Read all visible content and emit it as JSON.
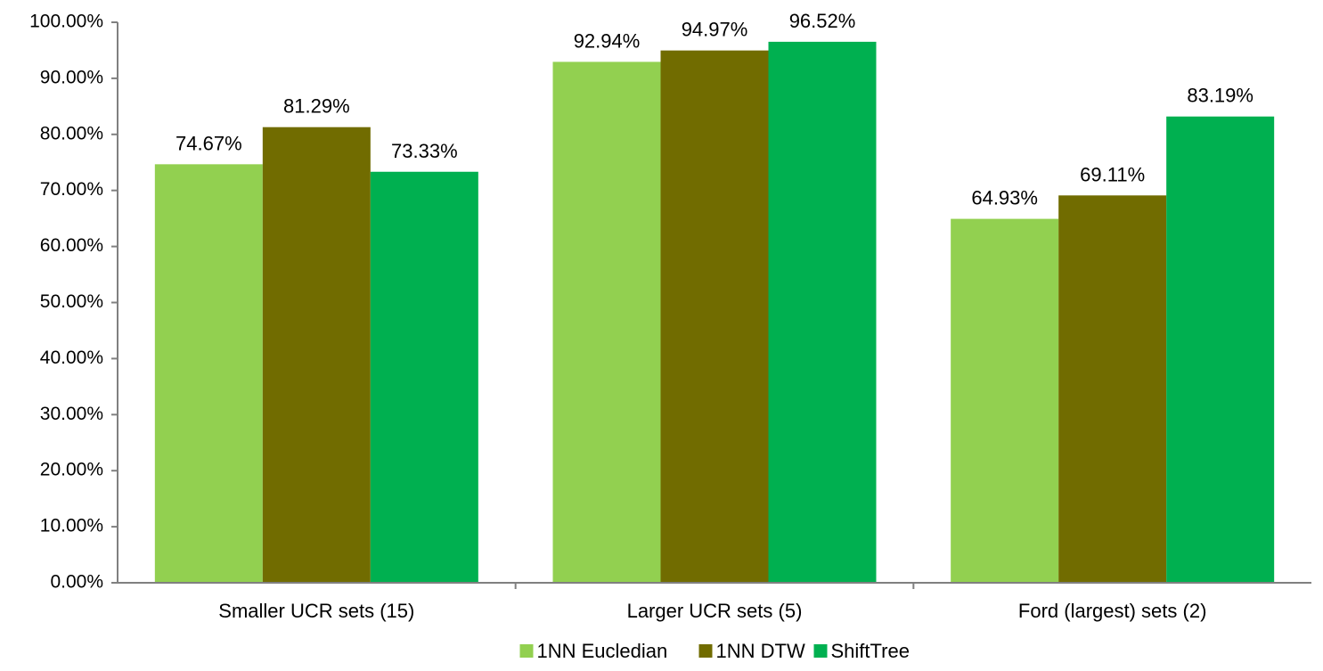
{
  "chart_data": {
    "type": "bar",
    "title": "",
    "xlabel": "",
    "ylabel": "",
    "categories": [
      "Smaller UCR sets (15)",
      "Larger UCR sets (5)",
      "Ford (largest) sets (2)"
    ],
    "series": [
      {
        "name": "1NN Eucledian",
        "color": "#92d050",
        "values": [
          74.67,
          92.94,
          64.93
        ],
        "labels": [
          "74.67%",
          "92.94%",
          "64.93%"
        ]
      },
      {
        "name": "1NN DTW",
        "color": "#716c00",
        "values": [
          81.29,
          94.97,
          69.11
        ],
        "labels": [
          "81.29%",
          "94.97%",
          "69.11%"
        ]
      },
      {
        "name": "ShiftTree",
        "color": "#00b050",
        "values": [
          73.33,
          96.52,
          83.19
        ],
        "labels": [
          "73.33%",
          "96.52%",
          "83.19%"
        ]
      }
    ],
    "ylim": [
      0,
      100
    ],
    "yticks": [
      0,
      10,
      20,
      30,
      40,
      50,
      60,
      70,
      80,
      90,
      100
    ],
    "ytick_labels": [
      "0.00%",
      "10.00%",
      "20.00%",
      "30.00%",
      "40.00%",
      "50.00%",
      "60.00%",
      "70.00%",
      "80.00%",
      "90.00%",
      "100.00%"
    ],
    "grid": false,
    "legend_position": "bottom-center"
  }
}
